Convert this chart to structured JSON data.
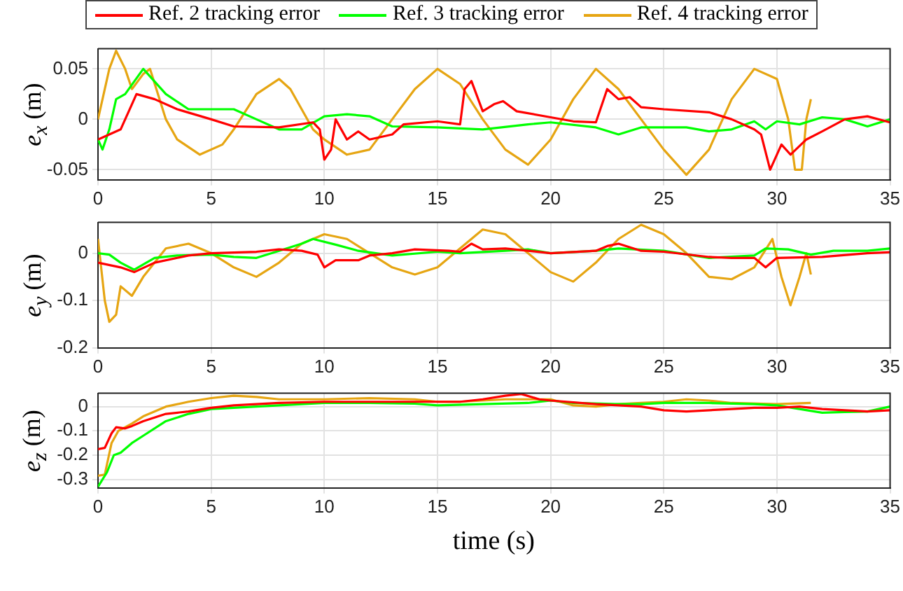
{
  "chart_data": [
    {
      "type": "line",
      "ylabel": "e$_{x}$ (m)",
      "xlim": [
        0,
        35
      ],
      "xticks": [
        0,
        5,
        10,
        15,
        20,
        25,
        30,
        35
      ],
      "ylim": [
        -0.06,
        0.07
      ],
      "yticks": [
        -0.05,
        0,
        0.05
      ],
      "grid": true,
      "legend": "top",
      "marker": "none",
      "line_style": "solid",
      "series": [
        {
          "name": "Ref. 2 tracking error",
          "color": "#ff0000",
          "x": [
            0,
            0.5,
            1,
            1.5,
            1.7,
            2.5,
            3.5,
            5,
            6,
            8,
            9.5,
            9.8,
            10,
            10.3,
            10.5,
            11,
            11.5,
            12,
            13,
            13.5,
            15,
            16,
            16.2,
            16.5,
            17,
            17.5,
            17.9,
            18.5,
            20,
            21,
            22,
            22.5,
            23,
            23.5,
            24,
            25,
            27,
            28,
            29,
            29.3,
            29.7,
            30.2,
            30.6,
            31.3,
            32,
            33,
            34,
            35
          ],
          "values": [
            -0.02,
            -0.015,
            -0.01,
            0.015,
            0.025,
            0.02,
            0.01,
            0,
            -0.007,
            -0.008,
            -0.003,
            -0.01,
            -0.04,
            -0.03,
            0,
            -0.02,
            -0.012,
            -0.02,
            -0.015,
            -0.005,
            -0.002,
            -0.005,
            0.03,
            0.038,
            0.008,
            0.015,
            0.018,
            0.008,
            0.002,
            -0.002,
            -0.003,
            0.03,
            0.02,
            0.022,
            0.012,
            0.01,
            0.007,
            0,
            -0.01,
            -0.015,
            -0.05,
            -0.025,
            -0.035,
            -0.02,
            -0.012,
            0,
            0.003,
            -0.003
          ]
        },
        {
          "name": "Ref. 3 tracking error",
          "color": "#00ff00",
          "x": [
            0,
            0.2,
            0.5,
            0.8,
            1.2,
            2,
            3,
            4,
            5,
            6,
            7,
            8,
            9,
            10,
            11,
            12,
            13,
            15,
            17,
            19,
            20,
            22,
            23,
            24,
            26,
            27,
            28,
            29,
            29.5,
            30,
            31,
            32,
            33,
            34,
            35
          ],
          "values": [
            -0.02,
            -0.03,
            -0.01,
            0.02,
            0.025,
            0.05,
            0.025,
            0.01,
            0.01,
            0.01,
            0,
            -0.01,
            -0.01,
            0.003,
            0.005,
            0.003,
            -0.007,
            -0.008,
            -0.01,
            -0.005,
            -0.003,
            -0.008,
            -0.015,
            -0.008,
            -0.008,
            -0.012,
            -0.01,
            -0.002,
            -0.01,
            -0.002,
            -0.005,
            0.002,
            0,
            -0.007,
            0
          ]
        },
        {
          "name": "Ref. 4 tracking error",
          "color": "#e6a512",
          "x": [
            0,
            0.5,
            0.8,
            1.2,
            1.5,
            2,
            2.3,
            3,
            3.5,
            4.5,
            5.5,
            6,
            7,
            8,
            8.5,
            9.5,
            10,
            11,
            12,
            13,
            14,
            15,
            16,
            17,
            18,
            19,
            20,
            21,
            22,
            23,
            24,
            25,
            26,
            27,
            28,
            29,
            30,
            30.5,
            30.8,
            31.1,
            31.3,
            31.5
          ],
          "values": [
            0,
            0.05,
            0.068,
            0.05,
            0.03,
            0.045,
            0.05,
            0,
            -0.02,
            -0.035,
            -0.025,
            -0.01,
            0.025,
            0.04,
            0.03,
            -0.01,
            -0.02,
            -0.035,
            -0.03,
            0,
            0.03,
            0.05,
            0.035,
            0,
            -0.03,
            -0.045,
            -0.02,
            0.02,
            0.05,
            0.03,
            0,
            -0.03,
            -0.055,
            -0.03,
            0.02,
            0.05,
            0.04,
            0,
            -0.05,
            -0.05,
            0,
            0.02
          ]
        }
      ]
    },
    {
      "type": "line",
      "ylabel": "e$_{y}$ (m)",
      "xlim": [
        0,
        35
      ],
      "xticks": [
        0,
        5,
        10,
        15,
        20,
        25,
        30,
        35
      ],
      "ylim": [
        -0.2,
        0.065
      ],
      "yticks": [
        -0.2,
        -0.1,
        0
      ],
      "grid": true,
      "marker": "none",
      "line_style": "solid",
      "series": [
        {
          "color": "#ff0000",
          "x": [
            0,
            1,
            1.6,
            2.5,
            4,
            5,
            7,
            8,
            9,
            9.7,
            10,
            10.5,
            11.5,
            12,
            13,
            14,
            15.5,
            16,
            16.5,
            17,
            18,
            19,
            20,
            22,
            22.5,
            23,
            24,
            25,
            27,
            28,
            29,
            29.5,
            30,
            32,
            34,
            35
          ],
          "values": [
            -0.02,
            -0.03,
            -0.04,
            -0.02,
            -0.005,
            0,
            0.003,
            0.008,
            0.005,
            -0.003,
            -0.03,
            -0.015,
            -0.015,
            -0.005,
            0,
            0.008,
            0.005,
            0.003,
            0.02,
            0.008,
            0.01,
            0.005,
            0,
            0.005,
            0.015,
            0.02,
            0.005,
            0.003,
            -0.008,
            -0.01,
            -0.01,
            -0.03,
            -0.01,
            -0.008,
            0,
            0.002
          ]
        },
        {
          "color": "#00ff00",
          "x": [
            0,
            0.5,
            1,
            1.6,
            2.5,
            3.5,
            5,
            6,
            7,
            8,
            9,
            9.5,
            10.5,
            11.5,
            13,
            15,
            16,
            18,
            19,
            20,
            22,
            23,
            25,
            27,
            29,
            29.5,
            30.5,
            31.5,
            32.5,
            34,
            35
          ],
          "values": [
            0,
            -0.003,
            -0.02,
            -0.035,
            -0.01,
            -0.005,
            -0.003,
            -0.008,
            -0.01,
            0.005,
            0.02,
            0.03,
            0.018,
            0.005,
            -0.005,
            0.003,
            0,
            0.005,
            0.008,
            0,
            0.005,
            0.01,
            0.005,
            -0.01,
            -0.005,
            0.01,
            0.008,
            -0.003,
            0.005,
            0.005,
            0.01
          ]
        },
        {
          "color": "#e6a512",
          "x": [
            0,
            0.3,
            0.5,
            0.8,
            1,
            1.5,
            2,
            2.5,
            3,
            4,
            5,
            6,
            7,
            8,
            9,
            10,
            11,
            12,
            13,
            14,
            15,
            16,
            17,
            18,
            19,
            20,
            21,
            22,
            23,
            24,
            25,
            26,
            27,
            28,
            29,
            29.8,
            30.2,
            30.6,
            31,
            31.3,
            31.5
          ],
          "values": [
            0.03,
            -0.1,
            -0.145,
            -0.13,
            -0.07,
            -0.09,
            -0.05,
            -0.02,
            0.01,
            0.02,
            0,
            -0.03,
            -0.05,
            -0.02,
            0.02,
            0.04,
            0.03,
            0,
            -0.03,
            -0.045,
            -0.03,
            0.01,
            0.05,
            0.04,
            0,
            -0.04,
            -0.06,
            -0.02,
            0.03,
            0.06,
            0.04,
            0,
            -0.05,
            -0.055,
            -0.03,
            0.03,
            -0.05,
            -0.11,
            -0.05,
            0,
            -0.045
          ]
        }
      ]
    },
    {
      "type": "line",
      "ylabel": "e$_{z}$ (m)",
      "xlabel": "time (s)",
      "xlim": [
        0,
        35
      ],
      "xticks": [
        0,
        5,
        10,
        15,
        20,
        25,
        30,
        35
      ],
      "ylim": [
        -0.335,
        0.055
      ],
      "yticks": [
        -0.3,
        -0.2,
        -0.1,
        0
      ],
      "grid": true,
      "marker": "none",
      "line_style": "solid",
      "series": [
        {
          "color": "#ff0000",
          "x": [
            0,
            0.3,
            0.6,
            0.8,
            1.2,
            1.5,
            2,
            3,
            4,
            5,
            6,
            8,
            10,
            12,
            14,
            16,
            17,
            18,
            18.7,
            19.5,
            20,
            22,
            24,
            25,
            26,
            28,
            29,
            30,
            31,
            32,
            33,
            34,
            35
          ],
          "values": [
            -0.175,
            -0.17,
            -0.11,
            -0.085,
            -0.09,
            -0.08,
            -0.06,
            -0.03,
            -0.02,
            -0.005,
            0.005,
            0.015,
            0.02,
            0.02,
            0.02,
            0.02,
            0.03,
            0.045,
            0.052,
            0.03,
            0.025,
            0.01,
            0,
            -0.015,
            -0.02,
            -0.01,
            -0.005,
            -0.005,
            0,
            -0.01,
            -0.015,
            -0.02,
            -0.015
          ]
        },
        {
          "color": "#00ff00",
          "x": [
            0,
            0.4,
            0.7,
            1,
            1.5,
            2,
            3,
            4,
            5,
            6,
            8,
            10,
            12,
            14,
            15,
            17,
            19,
            20,
            21,
            23,
            24,
            25,
            27,
            29,
            30,
            31,
            32,
            33,
            34,
            35
          ],
          "values": [
            -0.33,
            -0.27,
            -0.2,
            -0.19,
            -0.15,
            -0.12,
            -0.06,
            -0.03,
            -0.01,
            -0.005,
            0.005,
            0.015,
            0.015,
            0.012,
            0.005,
            0.01,
            0.015,
            0.025,
            0.015,
            0.01,
            0.01,
            0.015,
            0.015,
            0.01,
            0.005,
            -0.01,
            -0.025,
            -0.022,
            -0.02,
            0
          ]
        },
        {
          "color": "#e6a512",
          "x": [
            0,
            0.3,
            0.6,
            0.9,
            1.5,
            2,
            3,
            4,
            5,
            6,
            7,
            8,
            10,
            12,
            14,
            15,
            16,
            18,
            20,
            21,
            22,
            23,
            24,
            25,
            26,
            27,
            28,
            30,
            31.5
          ],
          "values": [
            -0.285,
            -0.28,
            -0.15,
            -0.1,
            -0.07,
            -0.04,
            0,
            0.02,
            0.035,
            0.045,
            0.04,
            0.03,
            0.03,
            0.035,
            0.03,
            0.02,
            0.02,
            0.03,
            0.03,
            0.005,
            0,
            0.01,
            0.015,
            0.02,
            0.03,
            0.025,
            0.015,
            0.01,
            0.015
          ]
        }
      ]
    }
  ]
}
